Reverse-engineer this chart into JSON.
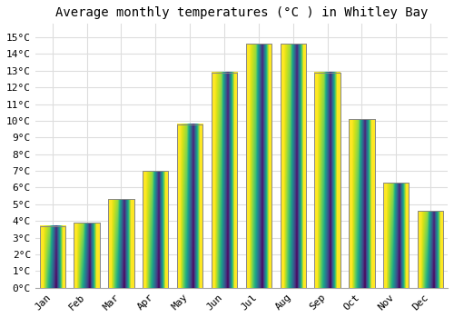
{
  "title": "Average monthly temperatures (°C ) in Whitley Bay",
  "months": [
    "Jan",
    "Feb",
    "Mar",
    "Apr",
    "May",
    "Jun",
    "Jul",
    "Aug",
    "Sep",
    "Oct",
    "Nov",
    "Dec"
  ],
  "values": [
    3.7,
    3.9,
    5.3,
    7.0,
    9.8,
    12.9,
    14.6,
    14.6,
    12.9,
    10.1,
    6.3,
    4.6
  ],
  "bar_color": "#FFA500",
  "bar_edge_color": "#888888",
  "ylim": [
    0,
    15.8
  ],
  "ytick_max": 15,
  "background_color": "#ffffff",
  "plot_bg_color": "#ffffff",
  "grid_color": "#dddddd",
  "title_fontsize": 10,
  "tick_fontsize": 8,
  "font_family": "monospace",
  "bar_width": 0.75
}
